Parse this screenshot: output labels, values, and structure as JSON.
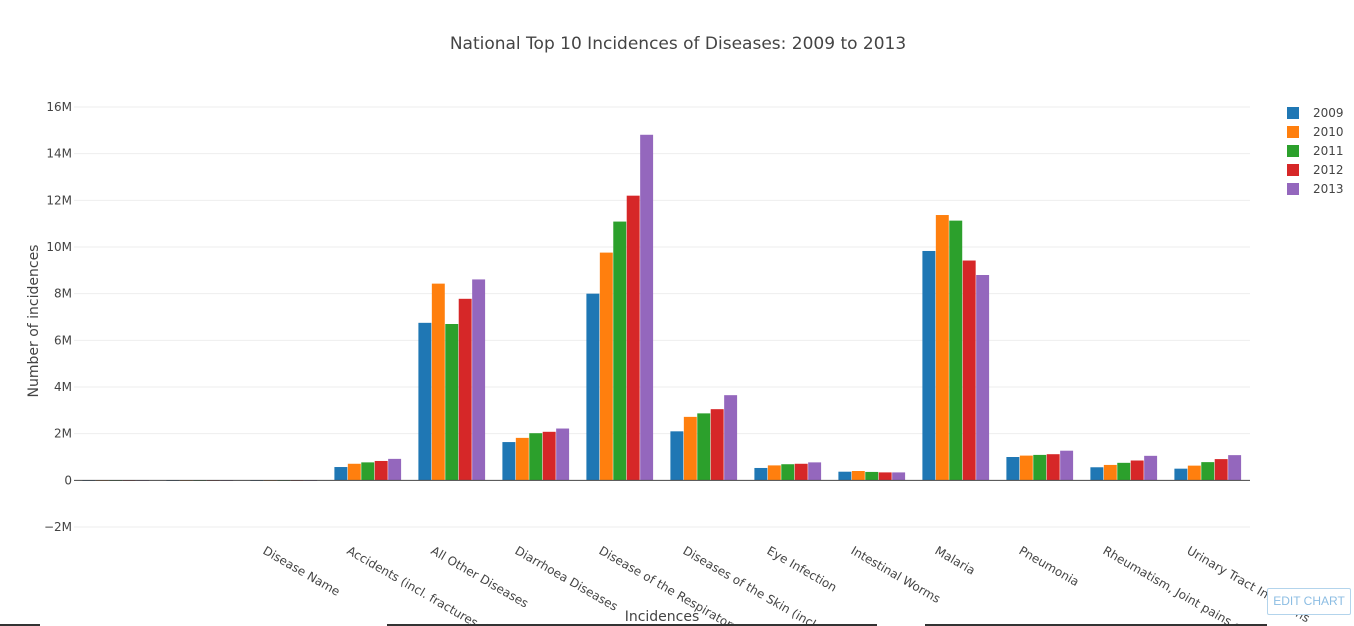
{
  "chart_data": {
    "type": "bar",
    "title": "National Top 10 Incidences of Diseases: 2009 to 2013",
    "xlabel": "Incidences",
    "ylabel": "Number of incidences",
    "ylim": [
      -2000000,
      16000000
    ],
    "yticks": [
      -2000000,
      0,
      2000000,
      4000000,
      6000000,
      8000000,
      10000000,
      12000000,
      14000000,
      16000000
    ],
    "ytick_labels": [
      "−2M",
      "0",
      "2M",
      "4M",
      "6M",
      "8M",
      "10M",
      "12M",
      "14M",
      "16M"
    ],
    "grid": true,
    "legend_position": "top-right",
    "categories": [
      "",
      "",
      "Disease Name",
      "Accidents (incl. fractures, b",
      "All Other Diseases",
      "Diarrhoea Diseases",
      "Disease of the  Respiratory",
      "Diseases of the Skin (incl. u",
      "Eye Infection",
      "Intestinal Worms",
      "Malaria",
      "Pneumonia",
      "Rheumatism, Joint  pains e",
      "Urinary Tract Infections"
    ],
    "series": [
      {
        "name": "2009",
        "color": "#1f77b4",
        "values": [
          0,
          0,
          0,
          570000,
          6750000,
          1640000,
          8000000,
          2100000,
          530000,
          370000,
          9830000,
          1000000,
          560000,
          500000
        ]
      },
      {
        "name": "2010",
        "color": "#ff7f0e",
        "values": [
          0,
          0,
          0,
          710000,
          8430000,
          1820000,
          9760000,
          2720000,
          640000,
          400000,
          11370000,
          1060000,
          660000,
          630000
        ]
      },
      {
        "name": "2011",
        "color": "#2ca02c",
        "values": [
          0,
          0,
          0,
          770000,
          6700000,
          2020000,
          11090000,
          2870000,
          690000,
          360000,
          11130000,
          1090000,
          750000,
          780000
        ]
      },
      {
        "name": "2012",
        "color": "#d62728",
        "values": [
          0,
          0,
          0,
          830000,
          7780000,
          2080000,
          12200000,
          3050000,
          710000,
          340000,
          9420000,
          1120000,
          850000,
          910000
        ]
      },
      {
        "name": "2013",
        "color": "#9467bd",
        "values": [
          0,
          0,
          0,
          920000,
          8610000,
          2220000,
          14810000,
          3650000,
          770000,
          340000,
          8800000,
          1270000,
          1050000,
          1080000
        ]
      }
    ]
  },
  "edit_button_label": "EDIT CHART"
}
